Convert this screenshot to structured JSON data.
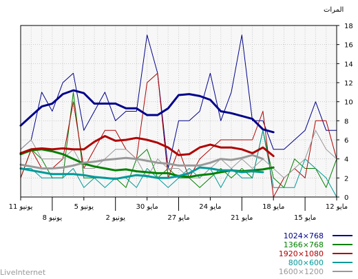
{
  "brand": "LiveInternet",
  "chart_data": {
    "type": "line",
    "ylabel": "المرات",
    "ylim": [
      0,
      18
    ],
    "yticks": [
      0,
      2,
      4,
      6,
      8,
      10,
      12,
      14,
      16,
      18
    ],
    "grid": true,
    "legend_placement": "bottom-right",
    "x_axis_direction": "right-to-left",
    "x_tick_labels_row1": [
      {
        "day": 0,
        "label": "12 مايو"
      },
      {
        "day": 6,
        "label": "18 مايو"
      },
      {
        "day": 12,
        "label": "24 مايو"
      },
      {
        "day": 18,
        "label": "30 مايو"
      },
      {
        "day": 24,
        "label": "5 يونيو"
      },
      {
        "day": 30,
        "label": "11 يونيو"
      }
    ],
    "x_tick_labels_row2": [
      {
        "day": 3,
        "label": "15 مايو"
      },
      {
        "day": 9,
        "label": "21 مايو"
      },
      {
        "day": 15,
        "label": "27 مايو"
      },
      {
        "day": 21,
        "label": "2 يونيو"
      },
      {
        "day": 27,
        "label": "8 يونيو"
      }
    ],
    "x_days": [
      0,
      1,
      2,
      3,
      4,
      5,
      6,
      7,
      8,
      9,
      10,
      11,
      12,
      13,
      14,
      15,
      16,
      17,
      18,
      19,
      20,
      21,
      22,
      23,
      24,
      25,
      26,
      27,
      28,
      29,
      30
    ],
    "series": [
      {
        "name": "1024×768",
        "color": "#00008b",
        "daily": [
          7,
          7,
          10,
          7,
          6,
          5,
          5,
          8,
          8,
          17,
          11,
          8,
          13,
          9,
          8,
          8,
          3,
          13,
          17,
          9,
          9,
          8,
          11,
          9,
          7,
          13,
          12,
          9,
          11,
          6,
          5
        ],
        "trend": [
          null,
          null,
          null,
          null,
          null,
          null,
          6.8,
          7.1,
          8.2,
          8.5,
          8.8,
          9.0,
          10.2,
          10.6,
          10.8,
          10.7,
          9.3,
          8.6,
          8.6,
          9.3,
          9.3,
          9.8,
          9.8,
          9.8,
          10.9,
          11.2,
          10.8,
          9.8,
          9.5,
          8.5,
          7.5
        ]
      },
      {
        "name": "1366×768",
        "color": "#008000",
        "daily": [
          4,
          1,
          3,
          3,
          4,
          1,
          2,
          7,
          2,
          3,
          2,
          3,
          2,
          1,
          2,
          2,
          3,
          2,
          5,
          4,
          1,
          2,
          2,
          2,
          2,
          11,
          2,
          2,
          4,
          5,
          2
        ],
        "trend": [
          null,
          null,
          null,
          null,
          null,
          null,
          3.1,
          2.9,
          2.8,
          2.7,
          2.8,
          2.6,
          2.4,
          2.3,
          2.1,
          2.2,
          2.5,
          2.5,
          2.6,
          2.7,
          2.9,
          2.8,
          3.0,
          3.2,
          3.5,
          4.0,
          4.5,
          4.8,
          5.0,
          4.9,
          4.5
        ]
      },
      {
        "name": "1920×1080",
        "color": "#b00000",
        "daily": [
          4,
          8,
          8,
          2,
          3,
          2,
          0,
          9,
          6,
          6,
          6,
          6,
          5,
          4,
          2,
          5,
          2,
          13,
          12,
          4,
          5,
          7,
          7,
          5,
          3,
          10,
          4,
          3,
          3,
          5,
          2
        ],
        "trend": [
          null,
          null,
          null,
          null,
          null,
          null,
          4.3,
          5.2,
          4.6,
          5.0,
          5.2,
          5.2,
          5.5,
          5.2,
          4.5,
          4.4,
          5.2,
          5.7,
          6.0,
          6.2,
          6.0,
          5.9,
          6.4,
          5.8,
          5.0,
          5.0,
          5.1,
          5.0,
          5.1,
          5.0,
          4.6
        ]
      },
      {
        "name": "800×600",
        "color": "#009999",
        "daily": [
          0,
          2,
          3,
          4,
          1,
          1,
          1,
          7,
          2,
          2,
          3,
          1,
          3,
          2,
          3,
          2,
          1,
          2,
          3,
          1,
          2,
          2,
          1,
          2,
          1,
          3,
          2,
          2,
          2,
          3,
          3
        ],
        "trend": [
          null,
          null,
          null,
          null,
          null,
          null,
          null,
          2.6,
          2.7,
          2.6,
          2.8,
          2.8,
          3.0,
          3.1,
          2.5,
          2.2,
          2.0,
          2.0,
          2.2,
          2.3,
          2.1,
          1.9,
          2.0,
          2.1,
          2.3,
          2.4,
          2.4,
          2.4,
          2.6,
          2.8,
          3.0
        ]
      },
      {
        "name": "1600×1200",
        "color": "#999999",
        "daily": [
          4,
          5,
          7,
          4,
          3,
          2,
          3,
          4,
          3,
          4,
          3,
          4,
          3,
          2,
          2,
          3,
          3,
          4,
          2,
          4,
          5,
          5,
          4,
          3,
          3,
          5,
          4,
          4,
          4,
          6,
          5
        ],
        "trend": [
          null,
          null,
          null,
          null,
          null,
          null,
          null,
          4.0,
          4.4,
          4.1,
          3.9,
          4.0,
          3.6,
          3.3,
          3.3,
          3.3,
          3.5,
          3.6,
          3.8,
          4.0,
          4.1,
          4.0,
          3.9,
          3.7,
          3.6,
          3.3,
          3.1,
          3.0,
          3.0,
          3.2,
          3.4
        ]
      }
    ]
  }
}
